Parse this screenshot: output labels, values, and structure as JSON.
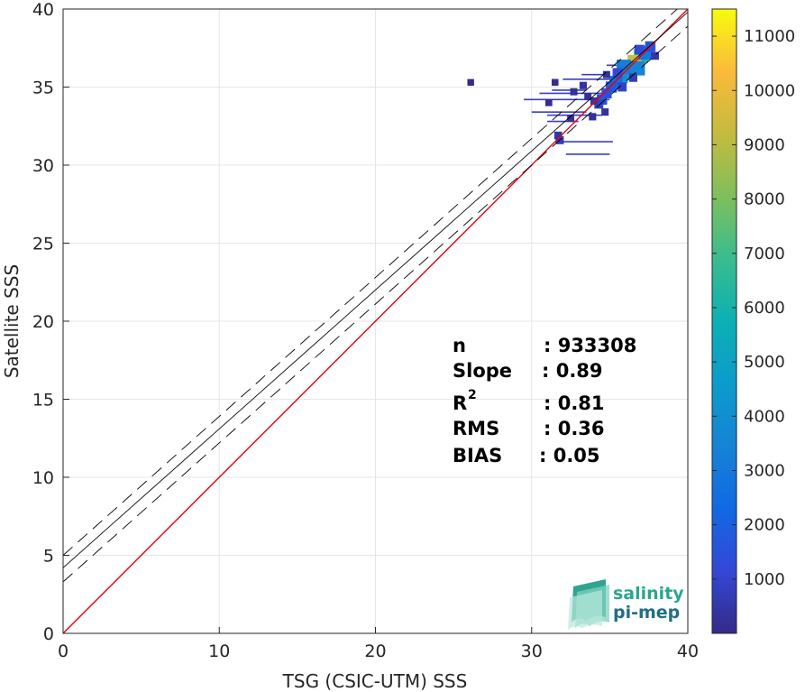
{
  "chart_data": {
    "type": "heatmap",
    "xlabel": "TSG (CSIC-UTM) SSS",
    "ylabel": "Satellite SSS",
    "xlim": [
      0,
      40
    ],
    "ylim": [
      0,
      40
    ],
    "x_ticks": [
      "0",
      "10",
      "20",
      "30",
      "40"
    ],
    "y_ticks": [
      "0",
      "5",
      "10",
      "15",
      "20",
      "25",
      "30",
      "35",
      "40"
    ],
    "grid": true,
    "colorbar": {
      "range": [
        0,
        11500
      ],
      "ticks": [
        "1000",
        "2000",
        "3000",
        "4000",
        "5000",
        "6000",
        "7000",
        "8000",
        "9000",
        "10000",
        "11000"
      ],
      "colormap": "parula"
    },
    "reference_lines": [
      {
        "role": "identity",
        "color": "#e8000b",
        "x": [
          0,
          40
        ],
        "y": [
          0,
          40
        ]
      },
      {
        "role": "fit",
        "color": "#000000",
        "style": "solid",
        "x": [
          0,
          40
        ],
        "y": [
          4.2,
          39.8
        ]
      },
      {
        "role": "fit-upper",
        "color": "#000000",
        "style": "dashed",
        "x": [
          0,
          40
        ],
        "y": [
          5.0,
          40.6
        ]
      },
      {
        "role": "fit-lower",
        "color": "#000000",
        "style": "dashed",
        "x": [
          0,
          40
        ],
        "y": [
          3.3,
          38.9
        ]
      }
    ],
    "density_cells": [
      {
        "x": 37.0,
        "y": 37.0,
        "count": 6500
      },
      {
        "x": 36.6,
        "y": 36.6,
        "count": 9500
      },
      {
        "x": 36.3,
        "y": 36.2,
        "count": 7000
      },
      {
        "x": 36.0,
        "y": 35.9,
        "count": 5200
      },
      {
        "x": 35.7,
        "y": 35.7,
        "count": 4200
      },
      {
        "x": 37.3,
        "y": 37.2,
        "count": 3000
      },
      {
        "x": 36.8,
        "y": 36.2,
        "count": 3500
      },
      {
        "x": 35.9,
        "y": 36.3,
        "count": 3200
      },
      {
        "x": 35.4,
        "y": 35.3,
        "count": 2500
      },
      {
        "x": 35.1,
        "y": 35.0,
        "count": 1800
      },
      {
        "x": 34.8,
        "y": 34.6,
        "count": 1400
      },
      {
        "x": 34.5,
        "y": 34.2,
        "count": 1500
      },
      {
        "x": 34.3,
        "y": 33.9,
        "count": 900
      },
      {
        "x": 37.6,
        "y": 37.6,
        "count": 1500
      },
      {
        "x": 36.9,
        "y": 37.4,
        "count": 1200
      },
      {
        "x": 35.5,
        "y": 35.9,
        "count": 1300
      },
      {
        "x": 33.3,
        "y": 35.1,
        "count": 300
      },
      {
        "x": 32.7,
        "y": 34.7,
        "count": 250
      },
      {
        "x": 34.0,
        "y": 34.1,
        "count": 350
      },
      {
        "x": 33.9,
        "y": 33.1,
        "count": 300
      },
      {
        "x": 32.5,
        "y": 33.0,
        "count": 200
      },
      {
        "x": 31.8,
        "y": 31.6,
        "count": 600
      },
      {
        "x": 31.7,
        "y": 31.9,
        "count": 450
      },
      {
        "x": 31.1,
        "y": 34.0,
        "count": 150
      },
      {
        "x": 34.8,
        "y": 35.8,
        "count": 250
      },
      {
        "x": 33.6,
        "y": 34.4,
        "count": 200
      },
      {
        "x": 35.8,
        "y": 35.0,
        "count": 900
      },
      {
        "x": 36.5,
        "y": 35.6,
        "count": 700
      },
      {
        "x": 37.9,
        "y": 37.0,
        "count": 500
      },
      {
        "x": 31.5,
        "y": 35.3,
        "count": 100
      },
      {
        "x": 26.1,
        "y": 35.3,
        "count": 50
      },
      {
        "x": 34.7,
        "y": 33.4,
        "count": 300
      }
    ],
    "streaks": [
      {
        "x0": 29.5,
        "x1": 35.0,
        "y": 34.2
      },
      {
        "x0": 30.5,
        "x1": 35.0,
        "y": 34.6
      },
      {
        "x0": 31.3,
        "x1": 33.5,
        "y": 34.8
      },
      {
        "x0": 30.0,
        "x1": 33.5,
        "y": 33.4
      },
      {
        "x0": 31.0,
        "x1": 34.5,
        "y": 33.2
      },
      {
        "x0": 32.0,
        "x1": 35.4,
        "y": 35.5
      },
      {
        "x0": 33.2,
        "x1": 35.0,
        "y": 35.8
      },
      {
        "x0": 34.8,
        "x1": 37.0,
        "y": 36.4
      },
      {
        "x0": 31.5,
        "x1": 35.2,
        "y": 31.5
      },
      {
        "x0": 32.2,
        "x1": 35.0,
        "y": 30.7
      },
      {
        "x0": 31.0,
        "x1": 33.0,
        "y": 32.8
      }
    ],
    "stats": [
      {
        "label": "n",
        "value": ": 933308"
      },
      {
        "label": "Slope",
        "value": ": 0.89"
      },
      {
        "label": "R",
        "sup": "2",
        "value": ": 0.81"
      },
      {
        "label": "RMS",
        "value": ": 0.36"
      },
      {
        "label": "BIAS",
        "value": ": 0.05"
      }
    ]
  },
  "logo": {
    "line1": "salinity",
    "line2": "pi-mep"
  }
}
